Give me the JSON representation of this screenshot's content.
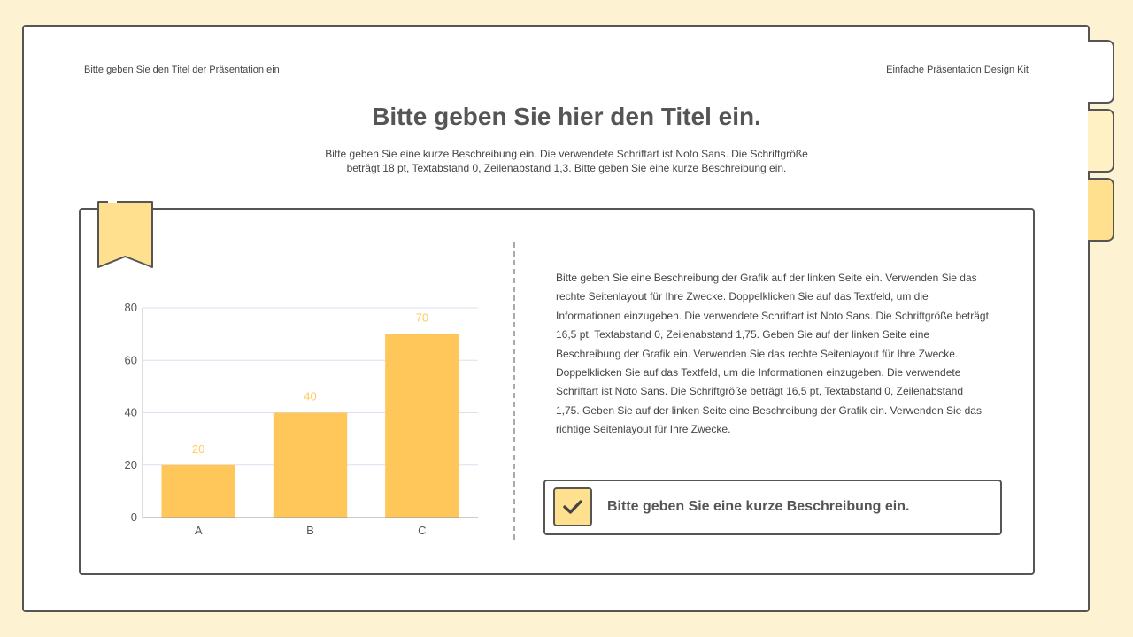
{
  "header": {
    "presentation_title": "Bitte geben Sie den Titel der Präsentation ein",
    "kit_name": "Einfache Präsentation Design Kit"
  },
  "slide": {
    "title": "Bitte geben Sie hier den Titel ein.",
    "subtitle_line1": "Bitte geben Sie eine kurze Beschreibung ein. Die verwendete Schriftart ist Noto Sans. Die Schriftgröße",
    "subtitle_line2": "beträgt 18 pt, Textabstand 0, Zeilenabstand 1,3. Bitte geben Sie eine kurze Beschreibung ein."
  },
  "description": "Bitte geben Sie eine Beschreibung der Grafik auf der linken Seite ein. Verwenden Sie das rechte Seitenlayout für Ihre Zwecke. Doppelklicken Sie auf das Textfeld, um die Informationen einzugeben. Die verwendete Schriftart ist Noto Sans. Die Schriftgröße beträgt 16,5 pt, Textabstand 0, Zeilenabstand 1,75. Geben Sie auf der linken Seite eine Beschreibung der Grafik ein. Verwenden Sie das rechte Seitenlayout für Ihre Zwecke. Doppelklicken Sie auf das Textfeld, um die Informationen einzugeben. Die verwendete Schriftart ist Noto Sans. Die Schriftgröße beträgt 16,5 pt, Textabstand 0, Zeilenabstand 1,75. Geben Sie auf der linken Seite eine Beschreibung der Grafik ein. Verwenden Sie das richtige Seitenlayout für Ihre Zwecke.",
  "callout": {
    "text": "Bitte geben Sie eine kurze Beschreibung ein.",
    "icon": "check-icon"
  },
  "colors": {
    "bar": "#ffc75a",
    "accent": "#ffe08e",
    "background": "#fdf3d3",
    "outline": "#555555"
  },
  "chart_data": {
    "type": "bar",
    "categories": [
      "A",
      "B",
      "C"
    ],
    "values": [
      20,
      40,
      70
    ],
    "ylim": [
      0,
      80
    ],
    "yticks": [
      0,
      20,
      40,
      60,
      80
    ],
    "grid": true,
    "title": "",
    "xlabel": "",
    "ylabel": ""
  }
}
